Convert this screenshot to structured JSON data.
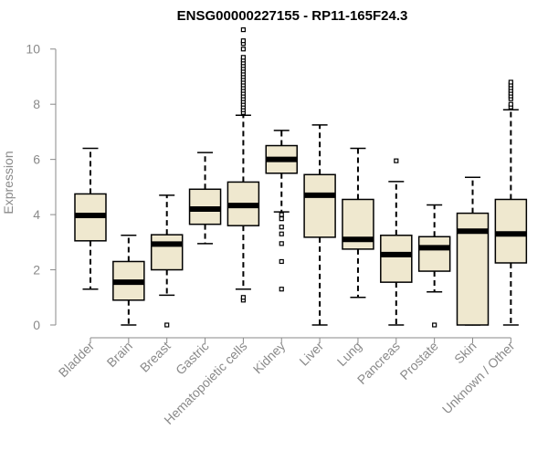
{
  "chart_data": {
    "type": "box",
    "title": "ENSG00000227155 - RP11-165F24.3",
    "xlabel": "",
    "ylabel": "Expression",
    "ylim": [
      0,
      10.6
    ],
    "yticks": [
      0,
      2,
      4,
      6,
      8,
      10
    ],
    "colors": {
      "box_fill": "#efe8cf",
      "stroke": "#000000",
      "axis": "#8a8a8a",
      "label": "#8a8a8a",
      "title": "#000000"
    },
    "categories": [
      "Bladder",
      "Brain",
      "Breast",
      "Gastric",
      "Hematopoietic cells",
      "Kidney",
      "Liver",
      "Lung",
      "Pancreas",
      "Prostate",
      "Skin",
      "Unknown / Other"
    ],
    "boxes": [
      {
        "category": "Bladder",
        "whisker_low": 1.3,
        "q1": 3.05,
        "median": 3.97,
        "q3": 4.75,
        "whisker_high": 6.4,
        "outliers": []
      },
      {
        "category": "Brain",
        "whisker_low": 0.0,
        "q1": 0.9,
        "median": 1.55,
        "q3": 2.3,
        "whisker_high": 3.25,
        "outliers": []
      },
      {
        "category": "Breast",
        "whisker_low": 1.08,
        "q1": 2.0,
        "median": 2.93,
        "q3": 3.27,
        "whisker_high": 4.7,
        "outliers": [
          0.0
        ]
      },
      {
        "category": "Gastric",
        "whisker_low": 2.95,
        "q1": 3.65,
        "median": 4.2,
        "q3": 4.92,
        "whisker_high": 6.25,
        "outliers": []
      },
      {
        "category": "Hematopoietic cells",
        "whisker_low": 1.3,
        "q1": 3.6,
        "median": 4.33,
        "q3": 5.18,
        "whisker_high": 7.6,
        "outliers": [
          0.9,
          1.0,
          7.7,
          7.8,
          7.9,
          8.0,
          8.1,
          8.2,
          8.3,
          8.4,
          8.5,
          8.6,
          8.7,
          8.8,
          8.9,
          9.0,
          9.1,
          9.2,
          9.3,
          9.4,
          9.5,
          9.6,
          9.7,
          10.0,
          10.2,
          10.3,
          10.7
        ]
      },
      {
        "category": "Kidney",
        "whisker_low": 4.1,
        "q1": 5.5,
        "median": 6.0,
        "q3": 6.5,
        "whisker_high": 7.05,
        "outliers": [
          1.3,
          2.3,
          2.95,
          3.3,
          3.55,
          3.85,
          4.0
        ]
      },
      {
        "category": "Liver",
        "whisker_low": 0.0,
        "q1": 3.18,
        "median": 4.7,
        "q3": 5.45,
        "whisker_high": 7.25,
        "outliers": []
      },
      {
        "category": "Lung",
        "whisker_low": 1.0,
        "q1": 2.75,
        "median": 3.1,
        "q3": 4.55,
        "whisker_high": 6.4,
        "outliers": []
      },
      {
        "category": "Pancreas",
        "whisker_low": 0.0,
        "q1": 1.55,
        "median": 2.55,
        "q3": 3.25,
        "whisker_high": 5.2,
        "outliers": [
          5.95
        ]
      },
      {
        "category": "Prostate",
        "whisker_low": 1.2,
        "q1": 1.95,
        "median": 2.8,
        "q3": 3.2,
        "whisker_high": 4.35,
        "outliers": [
          0.0
        ]
      },
      {
        "category": "Skin",
        "whisker_low": 0.0,
        "q1": 0.0,
        "median": 3.4,
        "q3": 4.05,
        "whisker_high": 5.35,
        "outliers": []
      },
      {
        "category": "Unknown / Other",
        "whisker_low": 0.0,
        "q1": 2.25,
        "median": 3.3,
        "q3": 4.55,
        "whisker_high": 7.8,
        "outliers": [
          7.9,
          8.0,
          8.2,
          8.3,
          8.4,
          8.5,
          8.6,
          8.7,
          8.8
        ]
      }
    ]
  }
}
